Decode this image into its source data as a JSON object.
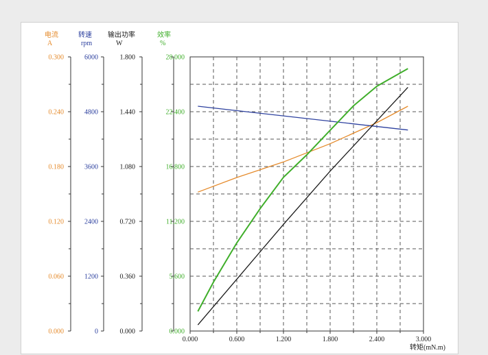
{
  "chart_data": {
    "type": "line",
    "title": "",
    "xlabel": "转矩(mN.m)",
    "xlim": [
      0,
      3.0
    ],
    "x_ticks": [
      "0.000",
      "0.600",
      "1.200",
      "1.800",
      "2.400",
      "3.000"
    ],
    "grid": true,
    "axes": [
      {
        "id": "current",
        "name": "电流",
        "unit": "A",
        "color": "#e58a2a",
        "ylim": [
          0,
          0.3
        ],
        "ticks": [
          "0.000",
          "0.060",
          "0.120",
          "0.180",
          "0.240",
          "0.300"
        ]
      },
      {
        "id": "speed",
        "name": "转速",
        "unit": "rpm",
        "color": "#2b3f9e",
        "ylim": [
          0,
          6000
        ],
        "ticks": [
          "0",
          "1200",
          "2400",
          "3600",
          "4800",
          "6000"
        ]
      },
      {
        "id": "power",
        "name": "输出功率",
        "unit": "W",
        "color": "#1a1a1a",
        "ylim": [
          0,
          1.8
        ],
        "ticks": [
          "0.000",
          "0.360",
          "0.720",
          "1.080",
          "1.440",
          "1.800"
        ]
      },
      {
        "id": "efficiency",
        "name": "效率",
        "unit": "%",
        "color": "#3fae2a",
        "ylim": [
          0,
          28
        ],
        "ticks": [
          "0.000",
          "5.600",
          "11.200",
          "16.800",
          "22.400",
          "28.000"
        ]
      }
    ],
    "series": [
      {
        "axis": "current",
        "color": "#e58a2a",
        "x": [
          0.1,
          0.6,
          1.2,
          1.8,
          2.4,
          2.8
        ],
        "y": [
          0.152,
          0.168,
          0.185,
          0.205,
          0.228,
          0.246
        ]
      },
      {
        "axis": "speed",
        "color": "#2b3f9e",
        "x": [
          0.1,
          2.8
        ],
        "y": [
          4920,
          4400
        ]
      },
      {
        "axis": "power",
        "color": "#1a1a1a",
        "x": [
          0.1,
          0.6,
          1.2,
          1.8,
          2.4,
          2.8
        ],
        "y": [
          0.04,
          0.34,
          0.7,
          1.05,
          1.38,
          1.6
        ]
      },
      {
        "axis": "efficiency",
        "color": "#3fae2a",
        "x": [
          0.1,
          0.3,
          0.6,
          0.9,
          1.2,
          1.5,
          1.8,
          2.1,
          2.4,
          2.8
        ],
        "y": [
          2.0,
          5.0,
          9.0,
          12.5,
          15.7,
          18.0,
          20.5,
          23.0,
          25.0,
          26.8
        ]
      }
    ]
  }
}
